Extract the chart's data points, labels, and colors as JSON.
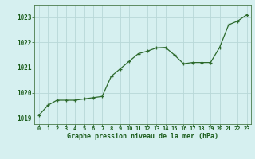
{
  "x": [
    0,
    1,
    2,
    3,
    4,
    5,
    6,
    7,
    8,
    9,
    10,
    11,
    12,
    13,
    14,
    15,
    16,
    17,
    18,
    19,
    20,
    21,
    22,
    23
  ],
  "y": [
    1019.1,
    1019.5,
    1019.7,
    1019.7,
    1019.7,
    1019.75,
    1019.8,
    1019.85,
    1020.65,
    1020.95,
    1021.25,
    1021.55,
    1021.65,
    1021.78,
    1021.8,
    1021.5,
    1021.15,
    1021.2,
    1021.2,
    1021.2,
    1021.8,
    1022.7,
    1022.85,
    1023.1
  ],
  "line_color": "#2d6a2d",
  "marker_color": "#2d6a2d",
  "bg_color": "#d6f0f0",
  "grid_color": "#b8d8d8",
  "xlabel": "Graphe pression niveau de la mer (hPa)",
  "xlabel_color": "#1a5c1a",
  "tick_color": "#1a5c1a",
  "ylim": [
    1018.75,
    1023.5
  ],
  "yticks": [
    1019,
    1020,
    1021,
    1022,
    1023
  ],
  "xlim": [
    -0.5,
    23.5
  ],
  "xticks": [
    0,
    1,
    2,
    3,
    4,
    5,
    6,
    7,
    8,
    9,
    10,
    11,
    12,
    13,
    14,
    15,
    16,
    17,
    18,
    19,
    20,
    21,
    22,
    23
  ],
  "xtick_labels": [
    "0",
    "1",
    "2",
    "3",
    "4",
    "5",
    "6",
    "7",
    "8",
    "9",
    "10",
    "11",
    "12",
    "13",
    "14",
    "15",
    "16",
    "17",
    "18",
    "19",
    "20",
    "21",
    "22",
    "23"
  ]
}
